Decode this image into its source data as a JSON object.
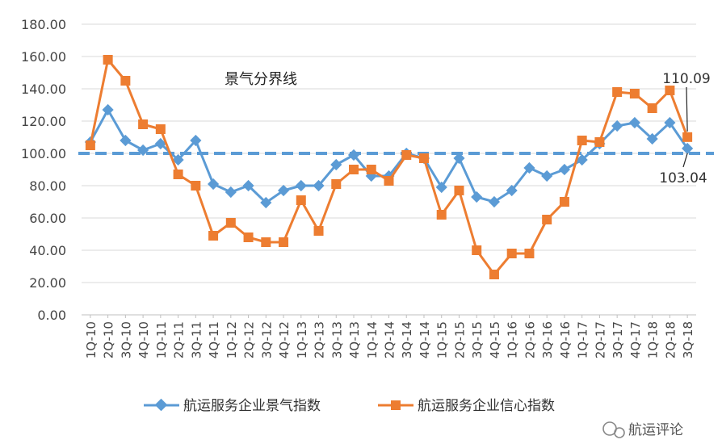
{
  "chart_data": {
    "type": "line",
    "categories": [
      "1Q-10",
      "2Q-10",
      "3Q-10",
      "4Q-10",
      "1Q-11",
      "2Q-11",
      "3Q-11",
      "4Q-11",
      "1Q-12",
      "2Q-12",
      "3Q-12",
      "4Q-12",
      "1Q-13",
      "2Q-13",
      "3Q-13",
      "4Q-13",
      "1Q-14",
      "2Q-14",
      "3Q-14",
      "4Q-14",
      "1Q-15",
      "2Q-15",
      "3Q-15",
      "4Q-15",
      "1Q-16",
      "2Q-16",
      "3Q-16",
      "4Q-16",
      "1Q-17",
      "2Q-17",
      "3Q-17",
      "4Q-17",
      "1Q-18",
      "2Q-18",
      "3Q-18"
    ],
    "series": [
      {
        "name": "航运服务企业景气指数",
        "color": "#5b9bd5",
        "marker": "diamond",
        "values": [
          107,
          127,
          108,
          102,
          106,
          96,
          108,
          81,
          76,
          80,
          69.5,
          77,
          80,
          80,
          93,
          99,
          86,
          86,
          100,
          97,
          79,
          97,
          73,
          70,
          77,
          91,
          86,
          90,
          96,
          106,
          117,
          119,
          109,
          119,
          103.04
        ]
      },
      {
        "name": "航运服务企业信心指数",
        "color": "#ed7d31",
        "marker": "square",
        "values": [
          105,
          158,
          145,
          118,
          115,
          87,
          80,
          49,
          57,
          48,
          45,
          45,
          71,
          52,
          81,
          90,
          90,
          83,
          99,
          97,
          62,
          77,
          40,
          25,
          38,
          38,
          59,
          70,
          108,
          107,
          138,
          137,
          128,
          139,
          110.09
        ]
      }
    ],
    "ylim": [
      0,
      180
    ],
    "ystep": 20,
    "ytick_labels": [
      "0.00",
      "20.00",
      "40.00",
      "60.00",
      "80.00",
      "100.00",
      "120.00",
      "140.00",
      "160.00",
      "180.00"
    ],
    "reference_line": {
      "value": 100,
      "label": "景气分界线",
      "color": "#5b9bd5",
      "style": "dashed"
    },
    "annotations": [
      {
        "text": "110.09",
        "category": "3Q-18",
        "series": 1
      },
      {
        "text": "103.04",
        "category": "3Q-18",
        "series": 0
      }
    ],
    "grid": true,
    "legend_position": "bottom",
    "title": "",
    "xlabel": "",
    "ylabel": ""
  },
  "watermark": {
    "text": "航运评论"
  }
}
